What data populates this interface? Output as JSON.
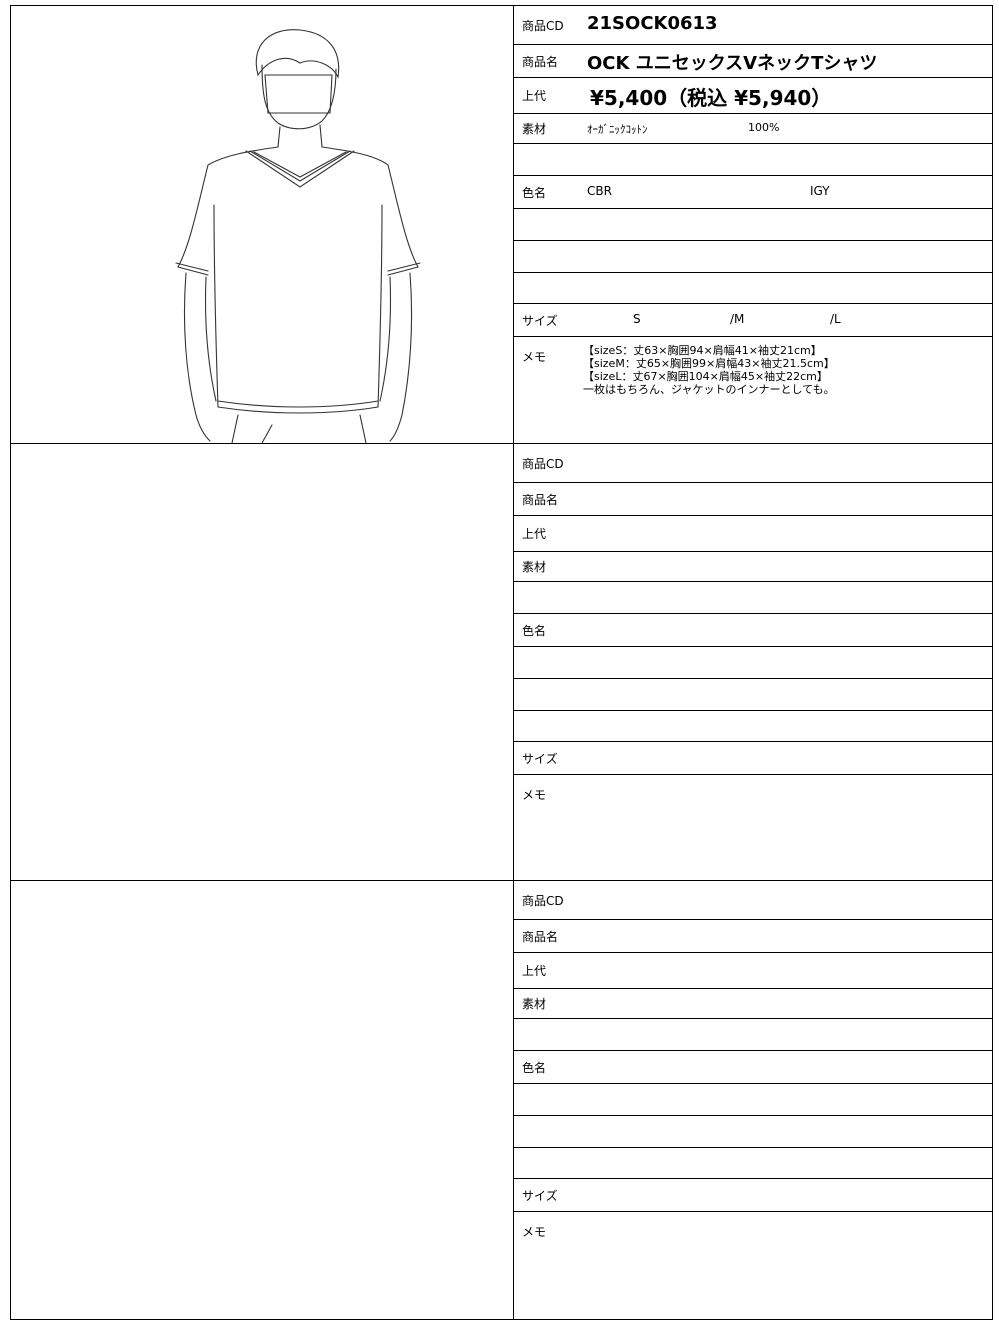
{
  "sheets": [
    {
      "rows": [
        {
          "label": "商品CD",
          "values": [
            "21SOCK0613"
          ]
        },
        {
          "label": "商品名",
          "values": [
            "OCK ユニセックスVネックTシャツ"
          ]
        },
        {
          "label": "上代",
          "values": [
            "¥5,400（税込 ¥5,940）"
          ]
        },
        {
          "label": "素材",
          "values": [
            "ｵｰｶﾞﾆｯｸｺｯﾄﾝ",
            "100%"
          ]
        },
        null,
        {
          "label": "色名",
          "values": [
            "CBR",
            "IGY"
          ]
        },
        null,
        null,
        null,
        {
          "label": "サイズ",
          "values": [
            "S",
            "/M",
            "/L"
          ]
        },
        {
          "label": "メモ",
          "values": [
            "【sizeS：丈63×胸囲94×肩幅41×袖丈21cm】",
            "【sizeM：丈65×胸囲99×肩幅43×袖丈21.5cm】",
            "【sizeL：丈67×胸囲104×肩幅45×袖丈22cm】",
            "一枚はもちろん、ジャケットのインナーとしても。"
          ]
        }
      ]
    },
    {
      "rows": [
        {
          "label": "商品CD"
        },
        {
          "label": "商品名"
        },
        {
          "label": "上代"
        },
        {
          "label": "素材"
        },
        null,
        {
          "label": "色名"
        },
        null,
        null,
        null,
        {
          "label": "サイズ"
        },
        {
          "label": "メモ"
        }
      ]
    },
    {
      "rows": [
        {
          "label": "商品CD"
        },
        {
          "label": "商品名"
        },
        {
          "label": "上代"
        },
        {
          "label": "素材"
        },
        null,
        {
          "label": "色名"
        },
        null,
        null,
        null,
        {
          "label": "サイズ"
        },
        {
          "label": "メモ"
        }
      ]
    }
  ]
}
